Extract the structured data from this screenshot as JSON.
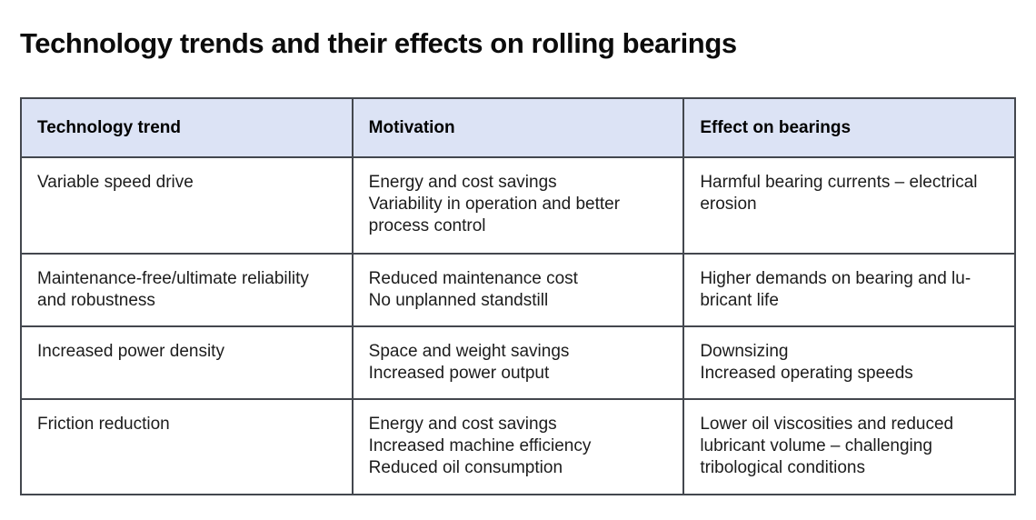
{
  "page": {
    "title": "Technology trends and their effects on rolling bearings"
  },
  "colors": {
    "header_bg": "#dce3f5",
    "border": "#43474e",
    "title_text": "#0c0c0c",
    "body_text": "#1c1c1c"
  },
  "table": {
    "headers": [
      "Technology trend",
      "Motivation",
      "Effect on bearings"
    ],
    "rows": [
      {
        "trend": [
          "Variable speed drive"
        ],
        "motivation": [
          "Energy and cost savings",
          "Variability in operation and better",
          "process control"
        ],
        "effect": [
          "Harmful bearing currents – electrical",
          "erosion"
        ]
      },
      {
        "trend": [
          "Maintenance-free/ultimate reliability",
          "and robustness"
        ],
        "motivation": [
          "Reduced maintenance cost",
          "No unplanned standstill"
        ],
        "effect": [
          "Higher demands on bearing and lu-",
          "bricant life"
        ]
      },
      {
        "trend": [
          "Increased power density"
        ],
        "motivation": [
          "Space and weight savings",
          "Increased power output"
        ],
        "effect": [
          "Downsizing",
          "Increased operating speeds"
        ]
      },
      {
        "trend": [
          "Friction reduction"
        ],
        "motivation": [
          "Energy and cost savings",
          "Increased machine efficiency",
          "Reduced oil consumption"
        ],
        "effect": [
          "Lower oil viscosities and reduced",
          "lubricant volume – challenging",
          "tribological conditions"
        ]
      }
    ]
  }
}
